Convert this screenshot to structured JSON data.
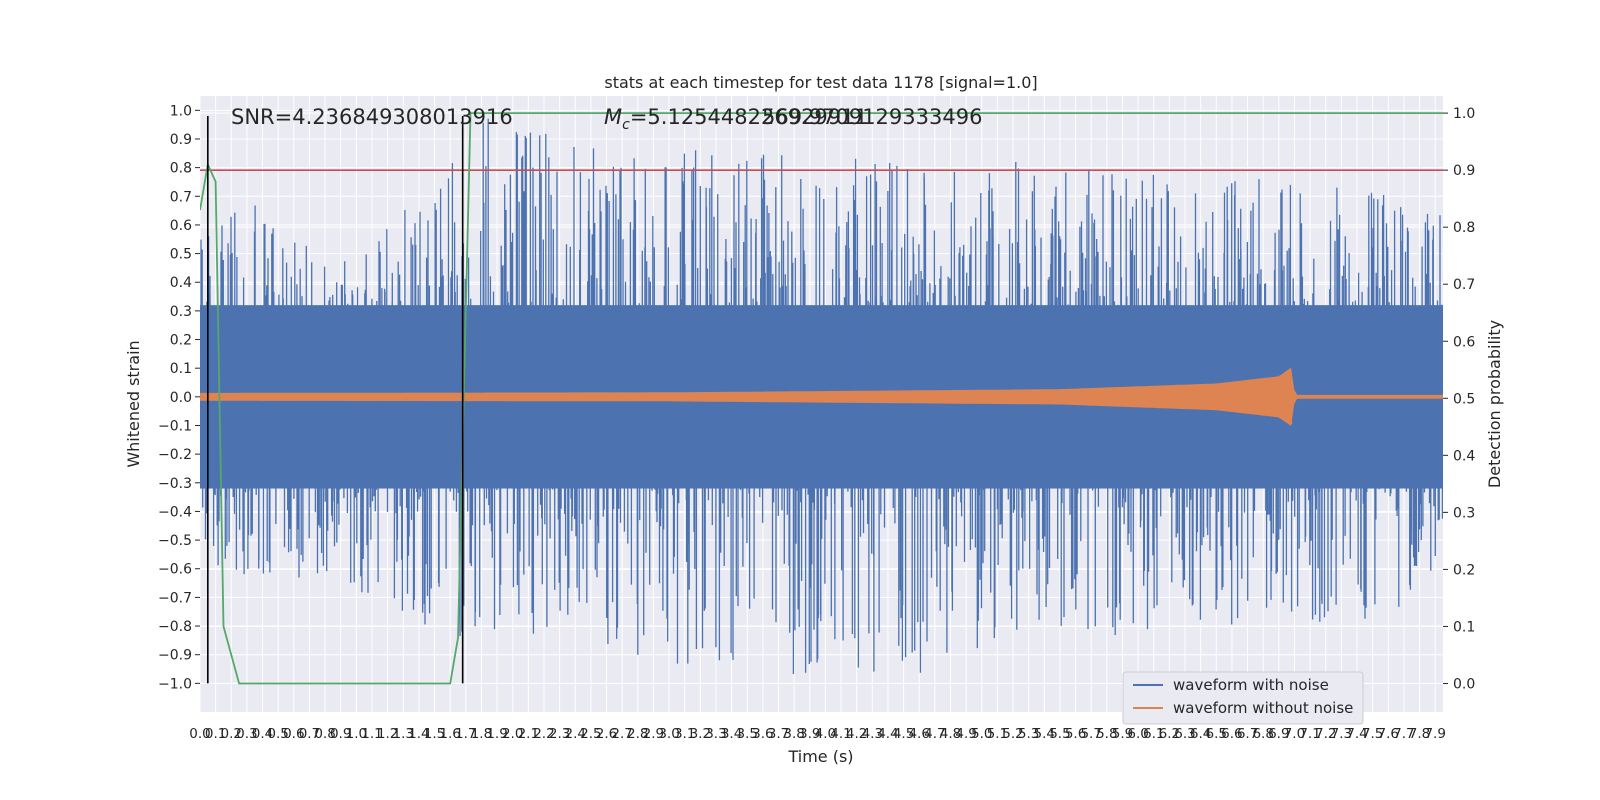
{
  "chart_data": {
    "type": "line",
    "title": "stats at each timestep for test data 1178 [signal=1.0]",
    "xlabel": "Time (s)",
    "ylabel_left": "Whitened strain",
    "ylabel_right": "Detection probability",
    "xlim": [
      0.0,
      7.95
    ],
    "ylim_left": [
      -1.1,
      1.05
    ],
    "ylim_right": [
      -0.05,
      1.03
    ],
    "x_tick_step": 0.1,
    "x_ticks_max": 7.9,
    "y_left_ticks": [
      "−1.0",
      "−0.9",
      "−0.8",
      "−0.7",
      "−0.6",
      "−0.5",
      "−0.4",
      "−0.3",
      "−0.2",
      "−0.1",
      "0.0",
      "0.1",
      "0.2",
      "0.3",
      "0.4",
      "0.5",
      "0.6",
      "0.7",
      "0.8",
      "0.9",
      "1.0"
    ],
    "y_left_tick_values": [
      -1.0,
      -0.9,
      -0.8,
      -0.7,
      -0.6,
      -0.5,
      -0.4,
      -0.3,
      -0.2,
      -0.1,
      0.0,
      0.1,
      0.2,
      0.3,
      0.4,
      0.5,
      0.6,
      0.7,
      0.8,
      0.9,
      1.0
    ],
    "y_right_ticks": [
      "0.0",
      "0.1",
      "0.2",
      "0.3",
      "0.4",
      "0.5",
      "0.6",
      "0.7",
      "0.8",
      "0.9",
      "1.0"
    ],
    "y_right_tick_values": [
      0.0,
      0.1,
      0.2,
      0.3,
      0.4,
      0.5,
      0.6,
      0.7,
      0.8,
      0.9,
      1.0
    ],
    "grid": true,
    "legend_position": "lower-right",
    "annotations": {
      "snr": "SNR=4.236849308013916",
      "mc_prefix": "M",
      "mc_sub": "c",
      "mc_value": "=5.125448226929911",
      "overlap_value": "569.9709129333496"
    },
    "series": [
      {
        "name": "waveform with noise",
        "color": "#4c72b0",
        "envelope_upper": [
          [
            0.0,
            0.55
          ],
          [
            0.1,
            0.6
          ],
          [
            0.3,
            0.7
          ],
          [
            0.6,
            0.55
          ],
          [
            1.0,
            0.5
          ],
          [
            1.55,
            0.77
          ],
          [
            1.85,
            1.0
          ],
          [
            2.6,
            0.86
          ],
          [
            2.85,
            0.87
          ],
          [
            4.6,
            0.82
          ],
          [
            5.9,
            0.82
          ],
          [
            7.9,
            0.7
          ]
        ],
        "envelope_lower": [
          [
            0.0,
            -0.55
          ],
          [
            0.3,
            -0.66
          ],
          [
            0.8,
            -0.62
          ],
          [
            1.6,
            -0.85
          ],
          [
            2.4,
            -0.82
          ],
          [
            2.85,
            -0.93
          ],
          [
            4.6,
            -1.0
          ],
          [
            5.6,
            -0.84
          ],
          [
            7.6,
            -0.78
          ],
          [
            7.9,
            -0.6
          ]
        ]
      },
      {
        "name": "waveform without noise",
        "color": "#dd8452",
        "amplitude": [
          [
            0.0,
            0.012
          ],
          [
            3.0,
            0.014
          ],
          [
            5.5,
            0.025
          ],
          [
            6.5,
            0.045
          ],
          [
            6.9,
            0.07
          ],
          [
            6.98,
            0.1
          ],
          [
            7.0,
            0.005
          ],
          [
            7.95,
            0.005
          ]
        ]
      },
      {
        "name": "detection probability",
        "axis": "right",
        "color": "#55a868",
        "points": [
          [
            0.0,
            0.83
          ],
          [
            0.05,
            0.91
          ],
          [
            0.1,
            0.88
          ],
          [
            0.15,
            0.1
          ],
          [
            0.25,
            0.0
          ],
          [
            0.8,
            0.0
          ],
          [
            1.0,
            0.0
          ],
          [
            1.6,
            0.0
          ],
          [
            1.65,
            0.08
          ],
          [
            1.73,
            1.0
          ],
          [
            7.95,
            1.0
          ]
        ]
      }
    ],
    "threshold_line": {
      "axis": "right",
      "value": 0.9,
      "color": "#c44e52"
    },
    "vertical_markers": [
      0.05,
      1.68
    ],
    "vertical_marker_color": "#000000"
  }
}
